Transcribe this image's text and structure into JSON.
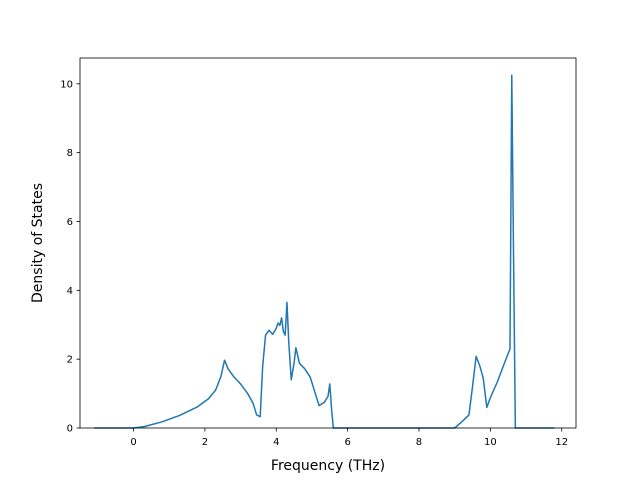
{
  "chart_data": {
    "type": "line",
    "title": "",
    "xlabel": "Frequency (THz)",
    "ylabel": "Density of States",
    "xlim": [
      -1.5,
      12.4
    ],
    "ylim": [
      0,
      10.75
    ],
    "xticks": [
      0,
      2,
      4,
      6,
      8,
      10,
      12
    ],
    "yticks": [
      0,
      2,
      4,
      6,
      8,
      10
    ],
    "grid": false,
    "legend": "none",
    "series": [
      {
        "color": "#1f77b4",
        "x": [
          -1.1,
          0.0,
          0.3,
          0.8,
          1.3,
          1.8,
          2.1,
          2.3,
          2.45,
          2.55,
          2.65,
          2.8,
          3.0,
          3.2,
          3.35,
          3.45,
          3.55,
          3.62,
          3.7,
          3.8,
          3.9,
          4.0,
          4.05,
          4.1,
          4.15,
          4.2,
          4.25,
          4.3,
          4.35,
          4.42,
          4.5,
          4.55,
          4.65,
          4.8,
          4.95,
          5.05,
          5.2,
          5.35,
          5.45,
          5.5,
          5.55,
          5.6,
          6.0,
          7.0,
          8.0,
          9.0,
          9.2,
          9.4,
          9.5,
          9.6,
          9.7,
          9.8,
          9.9,
          10.0,
          10.2,
          10.4,
          10.55,
          10.6,
          10.65,
          10.7,
          10.75,
          11.0,
          11.8
        ],
        "y": [
          0.0,
          0.0,
          0.04,
          0.18,
          0.37,
          0.62,
          0.85,
          1.1,
          1.5,
          1.97,
          1.72,
          1.5,
          1.28,
          1.0,
          0.72,
          0.38,
          0.33,
          1.8,
          2.7,
          2.84,
          2.72,
          2.9,
          3.05,
          2.98,
          3.2,
          2.8,
          2.7,
          3.65,
          2.5,
          1.4,
          1.9,
          2.33,
          1.88,
          1.72,
          1.48,
          1.15,
          0.65,
          0.75,
          0.92,
          1.28,
          0.55,
          0.0,
          0.0,
          0.0,
          0.0,
          0.0,
          0.18,
          0.38,
          1.2,
          2.08,
          1.82,
          1.45,
          0.6,
          0.88,
          1.35,
          1.9,
          2.3,
          10.25,
          5.0,
          0.0,
          0.0,
          0.0,
          0.0
        ]
      }
    ]
  }
}
